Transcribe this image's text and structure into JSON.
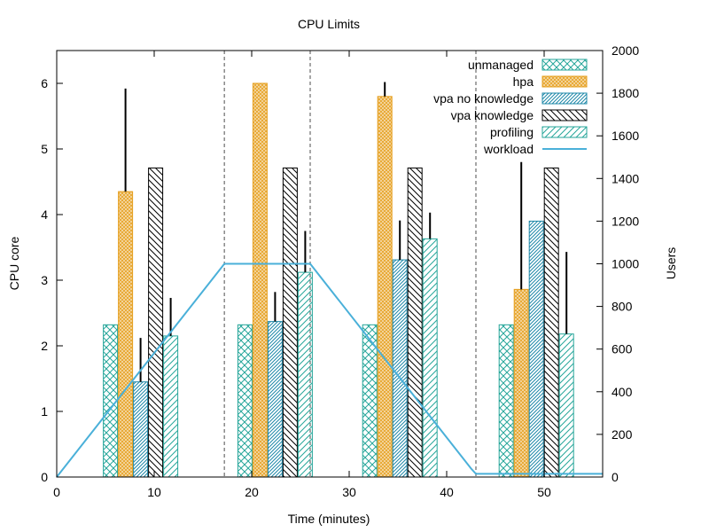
{
  "chart_data": {
    "type": "bar",
    "title": "CPU Limits",
    "xlabel": "Time (minutes)",
    "ylabel": "CPU core",
    "y2label": "Users",
    "xlim": [
      0,
      56
    ],
    "ylim": [
      0,
      6.5
    ],
    "y2lim": [
      0,
      2000
    ],
    "xticks": [
      0,
      10,
      20,
      30,
      40,
      50
    ],
    "yticks": [
      0,
      1,
      2,
      3,
      4,
      5,
      6
    ],
    "y2ticks": [
      0,
      200,
      400,
      600,
      800,
      1000,
      1200,
      1400,
      1600,
      1800,
      2000
    ],
    "vlines": [
      17.2,
      26,
      43
    ],
    "legend_position": "top-right",
    "group_centers": [
      8.6,
      22.4,
      35.2,
      49.2
    ],
    "series": [
      {
        "name": "unmanaged",
        "pattern": "crosshatch",
        "color": "#26a69a",
        "values": [
          2.32,
          2.32,
          2.32,
          2.32
        ],
        "err": [
          0,
          0,
          0,
          0
        ]
      },
      {
        "name": "hpa",
        "pattern": "fine-crosshatch",
        "color": "#e6a020",
        "values": [
          4.35,
          6.0,
          5.8,
          2.86
        ],
        "err": [
          1.57,
          0,
          0.22,
          1.94
        ]
      },
      {
        "name": "vpa no knowledge",
        "pattern": "diagonal-dense",
        "color": "#1e88a8",
        "values": [
          1.45,
          2.37,
          3.31,
          3.9
        ],
        "err": [
          0.67,
          0.45,
          0.6,
          0
        ]
      },
      {
        "name": "vpa knowledge",
        "pattern": "diagonal-back",
        "color": "#000000",
        "values": [
          4.71,
          4.71,
          4.71,
          4.71
        ],
        "err": [
          0,
          0,
          0,
          0
        ]
      },
      {
        "name": "profiling",
        "pattern": "diagonal-forward",
        "color": "#26a69a",
        "values": [
          2.15,
          3.12,
          3.63,
          2.18
        ],
        "err": [
          0.58,
          0.63,
          0.4,
          1.25
        ]
      }
    ],
    "workload": {
      "name": "workload",
      "color": "#4ab0d9",
      "x": [
        0,
        17.2,
        26,
        42.5,
        43,
        56
      ],
      "y": [
        0,
        1000,
        1000,
        40,
        15,
        15
      ]
    }
  }
}
